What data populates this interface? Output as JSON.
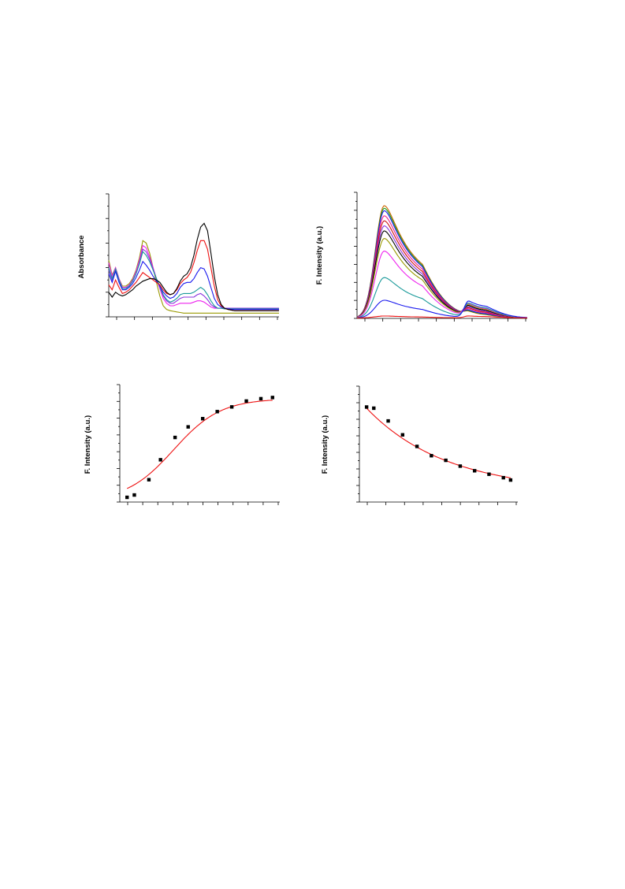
{
  "figure": {
    "panels": [
      {
        "id": "absorbance",
        "ylabel": "Absorbance"
      },
      {
        "id": "emission",
        "ylabel": "F. Intensity (a.u.)"
      },
      {
        "id": "titration-rise",
        "ylabel": "F. Intensity (a.u.)"
      },
      {
        "id": "titration-decay",
        "ylabel": "F. Intensity (a.u.)"
      }
    ]
  },
  "chart_data": [
    {
      "type": "line",
      "title": "",
      "xlabel": "",
      "ylabel": "Absorbance",
      "xlim": [
        0,
        1
      ],
      "ylim": [
        0,
        1
      ],
      "grid": false,
      "legend": "none",
      "x": [
        0.0,
        0.02,
        0.04,
        0.06,
        0.08,
        0.1,
        0.12,
        0.14,
        0.16,
        0.18,
        0.2,
        0.22,
        0.24,
        0.26,
        0.28,
        0.3,
        0.32,
        0.34,
        0.36,
        0.38,
        0.4,
        0.42,
        0.44,
        0.46,
        0.48,
        0.5,
        0.52,
        0.54,
        0.56,
        0.58,
        0.6,
        0.62,
        0.64,
        0.66,
        0.68,
        0.7,
        0.72,
        0.74,
        0.76,
        0.78,
        0.8,
        0.85,
        0.9,
        0.95,
        1.0
      ],
      "series": [
        {
          "color": "#000000",
          "values": [
            0.2,
            0.16,
            0.2,
            0.18,
            0.17,
            0.18,
            0.2,
            0.22,
            0.25,
            0.27,
            0.29,
            0.3,
            0.31,
            0.31,
            0.3,
            0.28,
            0.24,
            0.2,
            0.18,
            0.19,
            0.23,
            0.29,
            0.33,
            0.35,
            0.4,
            0.5,
            0.63,
            0.73,
            0.76,
            0.7,
            0.52,
            0.33,
            0.18,
            0.1,
            0.07,
            0.06,
            0.055,
            0.05,
            0.05,
            0.05,
            0.05,
            0.05,
            0.05,
            0.05,
            0.05
          ]
        },
        {
          "color": "#ee1111",
          "values": [
            0.26,
            0.22,
            0.3,
            0.24,
            0.19,
            0.2,
            0.22,
            0.25,
            0.28,
            0.32,
            0.36,
            0.34,
            0.32,
            0.3,
            0.28,
            0.26,
            0.22,
            0.19,
            0.18,
            0.19,
            0.22,
            0.27,
            0.3,
            0.32,
            0.36,
            0.44,
            0.54,
            0.62,
            0.62,
            0.55,
            0.4,
            0.25,
            0.14,
            0.09,
            0.07,
            0.06,
            0.055,
            0.05,
            0.05,
            0.05,
            0.05,
            0.05,
            0.05,
            0.05,
            0.05
          ]
        },
        {
          "color": "#1a1aee",
          "values": [
            0.35,
            0.28,
            0.37,
            0.28,
            0.22,
            0.22,
            0.24,
            0.27,
            0.32,
            0.38,
            0.45,
            0.42,
            0.38,
            0.33,
            0.29,
            0.25,
            0.2,
            0.17,
            0.15,
            0.16,
            0.19,
            0.24,
            0.27,
            0.28,
            0.28,
            0.31,
            0.36,
            0.4,
            0.39,
            0.33,
            0.24,
            0.15,
            0.1,
            0.08,
            0.07,
            0.065,
            0.06,
            0.06,
            0.06,
            0.06,
            0.06,
            0.06,
            0.06,
            0.06,
            0.06
          ]
        },
        {
          "color": "#1a9a9a",
          "values": [
            0.4,
            0.31,
            0.39,
            0.3,
            0.23,
            0.23,
            0.25,
            0.29,
            0.35,
            0.43,
            0.53,
            0.5,
            0.45,
            0.38,
            0.31,
            0.25,
            0.18,
            0.14,
            0.12,
            0.13,
            0.15,
            0.18,
            0.19,
            0.19,
            0.19,
            0.2,
            0.22,
            0.24,
            0.22,
            0.18,
            0.13,
            0.09,
            0.07,
            0.07,
            0.065,
            0.065,
            0.065,
            0.065,
            0.065,
            0.065,
            0.065,
            0.065,
            0.065,
            0.065,
            0.065
          ]
        },
        {
          "color": "#8833dd",
          "values": [
            0.38,
            0.3,
            0.38,
            0.29,
            0.23,
            0.23,
            0.25,
            0.29,
            0.35,
            0.44,
            0.55,
            0.53,
            0.47,
            0.39,
            0.31,
            0.24,
            0.17,
            0.13,
            0.11,
            0.11,
            0.13,
            0.15,
            0.16,
            0.16,
            0.16,
            0.16,
            0.18,
            0.19,
            0.17,
            0.14,
            0.1,
            0.08,
            0.07,
            0.07,
            0.07,
            0.07,
            0.07,
            0.07,
            0.07,
            0.07,
            0.07,
            0.07,
            0.07,
            0.07,
            0.07
          ]
        },
        {
          "color": "#ee22ee",
          "values": [
            0.44,
            0.33,
            0.4,
            0.31,
            0.24,
            0.24,
            0.26,
            0.3,
            0.37,
            0.46,
            0.58,
            0.56,
            0.49,
            0.4,
            0.31,
            0.23,
            0.15,
            0.11,
            0.09,
            0.09,
            0.1,
            0.11,
            0.11,
            0.11,
            0.11,
            0.12,
            0.13,
            0.13,
            0.12,
            0.1,
            0.08,
            0.07,
            0.07,
            0.07,
            0.07,
            0.07,
            0.07,
            0.07,
            0.07,
            0.07,
            0.07,
            0.07,
            0.07,
            0.07,
            0.07
          ]
        },
        {
          "color": "#999900",
          "values": [
            0.46,
            0.34,
            0.4,
            0.31,
            0.25,
            0.25,
            0.27,
            0.31,
            0.38,
            0.48,
            0.62,
            0.6,
            0.52,
            0.4,
            0.28,
            0.17,
            0.09,
            0.06,
            0.05,
            0.045,
            0.04,
            0.035,
            0.03,
            0.03,
            0.03,
            0.03,
            0.03,
            0.03,
            0.03,
            0.03,
            0.03,
            0.03,
            0.03,
            0.03,
            0.03,
            0.03,
            0.03,
            0.03,
            0.03,
            0.03,
            0.03,
            0.03,
            0.03,
            0.03,
            0.03
          ]
        }
      ]
    },
    {
      "type": "line",
      "title": "",
      "xlabel": "",
      "ylabel": "F. Intensity (a.u.)",
      "xlim": [
        0,
        1
      ],
      "ylim": [
        0,
        1
      ],
      "grid": false,
      "legend": "none",
      "peak1": {
        "center": 0.16,
        "width": 0.075,
        "tail": 0.11
      },
      "peak2": {
        "center": 0.655,
        "width": 0.035,
        "tail": 0.09
      },
      "series": [
        {
          "color": "#cc6600",
          "peak1": 0.89,
          "peak2": 0.03
        },
        {
          "color": "#1aa01a",
          "peak1": 0.87,
          "peak2": 0.035
        },
        {
          "color": "#1a1aee",
          "peak1": 0.85,
          "peak2": 0.04
        },
        {
          "color": "#ee2288",
          "peak1": 0.81,
          "peak2": 0.05
        },
        {
          "color": "#cc1111",
          "peak1": 0.77,
          "peak2": 0.06
        },
        {
          "color": "#8833dd",
          "peak1": 0.73,
          "peak2": 0.07
        },
        {
          "color": "#000000",
          "peak1": 0.69,
          "peak2": 0.08
        },
        {
          "color": "#999900",
          "peak1": 0.63,
          "peak2": 0.09
        },
        {
          "color": "#ee22ee",
          "peak1": 0.53,
          "peak2": 0.1
        },
        {
          "color": "#1a9a9a",
          "peak1": 0.32,
          "peak2": 0.11
        },
        {
          "color": "#1a1aee",
          "peak1": 0.14,
          "peak2": 0.13
        },
        {
          "color": "#ee1111",
          "peak1": 0.015,
          "peak2": 0.015
        }
      ]
    },
    {
      "type": "scatter",
      "title": "",
      "xlabel": "",
      "ylabel": "F. Intensity (a.u.)",
      "xlim": [
        -0.5,
        10.5
      ],
      "ylim": [
        0,
        1
      ],
      "grid": false,
      "legend": "none",
      "x": [
        0,
        0.5,
        1.5,
        2.3,
        3.3,
        4.2,
        5.2,
        6.2,
        7.2,
        8.2,
        9.2,
        10
      ],
      "values": [
        0.04,
        0.06,
        0.19,
        0.36,
        0.55,
        0.64,
        0.71,
        0.77,
        0.81,
        0.86,
        0.88,
        0.89
      ],
      "fit": {
        "color": "#ee1111",
        "model": "sigmoid",
        "min": 0.01,
        "max": 0.88,
        "x0": 3.2,
        "k": 0.62
      }
    },
    {
      "type": "scatter",
      "title": "",
      "xlabel": "",
      "ylabel": "F. Intensity (a.u.)",
      "xlim": [
        -0.5,
        10.5
      ],
      "ylim": [
        0,
        1
      ],
      "grid": false,
      "legend": "none",
      "x": [
        0,
        0.5,
        1.5,
        2.5,
        3.5,
        4.5,
        5.5,
        6.5,
        7.5,
        8.5,
        9.5,
        10
      ],
      "values": [
        0.82,
        0.81,
        0.7,
        0.58,
        0.48,
        0.4,
        0.36,
        0.31,
        0.27,
        0.24,
        0.21,
        0.19
      ],
      "fit": {
        "color": "#ee1111",
        "model": "exp-decay",
        "a": 0.72,
        "k": 0.18,
        "c": 0.09
      }
    }
  ]
}
